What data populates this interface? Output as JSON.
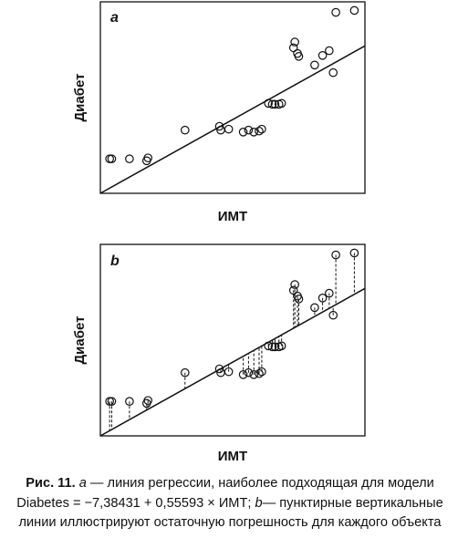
{
  "chart_data": [
    {
      "type": "scatter",
      "panel_label": "a",
      "xlabel": "ИМТ",
      "ylabel": "Диабет",
      "xlim": [
        0,
        100
      ],
      "ylim": [
        0,
        100
      ],
      "axis_ticks": false,
      "grid": false,
      "points": [
        {
          "x": 3.5,
          "y": 18
        },
        {
          "x": 4.3,
          "y": 18
        },
        {
          "x": 11,
          "y": 18
        },
        {
          "x": 17.5,
          "y": 17
        },
        {
          "x": 18,
          "y": 18.5
        },
        {
          "x": 32,
          "y": 33
        },
        {
          "x": 45,
          "y": 35
        },
        {
          "x": 45.5,
          "y": 33
        },
        {
          "x": 48.5,
          "y": 33.5
        },
        {
          "x": 54,
          "y": 32
        },
        {
          "x": 56,
          "y": 33
        },
        {
          "x": 58,
          "y": 32
        },
        {
          "x": 60,
          "y": 32.5
        },
        {
          "x": 61,
          "y": 33.5
        },
        {
          "x": 63.5,
          "y": 47
        },
        {
          "x": 65,
          "y": 46.5
        },
        {
          "x": 66,
          "y": 46.5
        },
        {
          "x": 67.5,
          "y": 46.5
        },
        {
          "x": 68.5,
          "y": 47
        },
        {
          "x": 73,
          "y": 76
        },
        {
          "x": 73.5,
          "y": 79
        },
        {
          "x": 74.5,
          "y": 73
        },
        {
          "x": 75,
          "y": 71.5
        },
        {
          "x": 81,
          "y": 67
        },
        {
          "x": 84,
          "y": 72
        },
        {
          "x": 86.5,
          "y": 74.5
        },
        {
          "x": 88,
          "y": 63
        },
        {
          "x": 89,
          "y": 94.5
        },
        {
          "x": 96,
          "y": 95.5
        }
      ],
      "regression_line": {
        "x": [
          0,
          100
        ],
        "y": [
          0,
          77
        ]
      }
    },
    {
      "type": "scatter",
      "panel_label": "b",
      "xlabel": "ИМТ",
      "ylabel": "Диабет",
      "xlim": [
        0,
        100
      ],
      "ylim": [
        0,
        100
      ],
      "axis_ticks": false,
      "grid": false,
      "residual_lines": true,
      "points": [
        {
          "x": 3.5,
          "y": 18
        },
        {
          "x": 4.3,
          "y": 18
        },
        {
          "x": 11,
          "y": 18
        },
        {
          "x": 17.5,
          "y": 17
        },
        {
          "x": 18,
          "y": 18.5
        },
        {
          "x": 32,
          "y": 33
        },
        {
          "x": 45,
          "y": 35
        },
        {
          "x": 45.5,
          "y": 33
        },
        {
          "x": 48.5,
          "y": 33.5
        },
        {
          "x": 54,
          "y": 32
        },
        {
          "x": 56,
          "y": 33
        },
        {
          "x": 58,
          "y": 32
        },
        {
          "x": 60,
          "y": 32.5
        },
        {
          "x": 61,
          "y": 33.5
        },
        {
          "x": 63.5,
          "y": 47
        },
        {
          "x": 65,
          "y": 46.5
        },
        {
          "x": 66,
          "y": 46.5
        },
        {
          "x": 67.5,
          "y": 46.5
        },
        {
          "x": 68.5,
          "y": 47
        },
        {
          "x": 73,
          "y": 76
        },
        {
          "x": 73.5,
          "y": 79
        },
        {
          "x": 74.5,
          "y": 73
        },
        {
          "x": 75,
          "y": 71.5
        },
        {
          "x": 81,
          "y": 67
        },
        {
          "x": 84,
          "y": 72
        },
        {
          "x": 86.5,
          "y": 74.5
        },
        {
          "x": 88,
          "y": 63
        },
        {
          "x": 89,
          "y": 94.5
        },
        {
          "x": 96,
          "y": 95.5
        }
      ],
      "regression_line": {
        "x": [
          0,
          100
        ],
        "y": [
          0,
          77
        ]
      }
    }
  ],
  "caption": {
    "label": "Рис. 11.",
    "part_a_letter": "a",
    "part_a_text": " — линия регрессии, наиболее подходящая для модели Diabetes = −7,38431 + 0,55593 × ИМТ; ",
    "part_b_letter": "b",
    "part_b_text": "— пунктирные вертикальные линии иллюстрируют остаточную погрешность для каждого объекта"
  }
}
